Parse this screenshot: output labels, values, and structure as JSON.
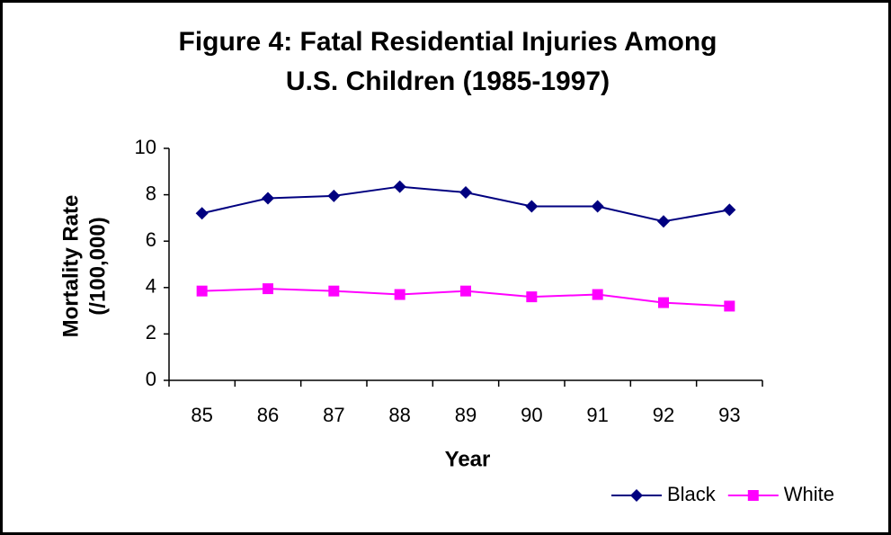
{
  "chart_data": {
    "type": "line",
    "title": [
      "Figure 4: Fatal Residential Injuries Among",
      "U.S. Children (1985-1997)"
    ],
    "x_label": "Year",
    "y_label": [
      "Mortality Rate",
      "(/100,000)"
    ],
    "categories": [
      "85",
      "86",
      "87",
      "88",
      "89",
      "90",
      "91",
      "92",
      "93"
    ],
    "series": [
      {
        "name": "Black",
        "color": "#000080",
        "marker": "diamond",
        "values": [
          7.2,
          7.85,
          7.95,
          8.35,
          8.1,
          7.5,
          7.5,
          6.85,
          7.35
        ]
      },
      {
        "name": "White",
        "color": "#ff00ff",
        "marker": "square",
        "values": [
          3.85,
          3.95,
          3.85,
          3.7,
          3.85,
          3.6,
          3.7,
          3.35,
          3.2
        ]
      }
    ],
    "ylim": [
      0,
      10
    ],
    "yticks": [
      0,
      2,
      4,
      6,
      8,
      10
    ],
    "grid": false,
    "legend": "bottom-right"
  }
}
